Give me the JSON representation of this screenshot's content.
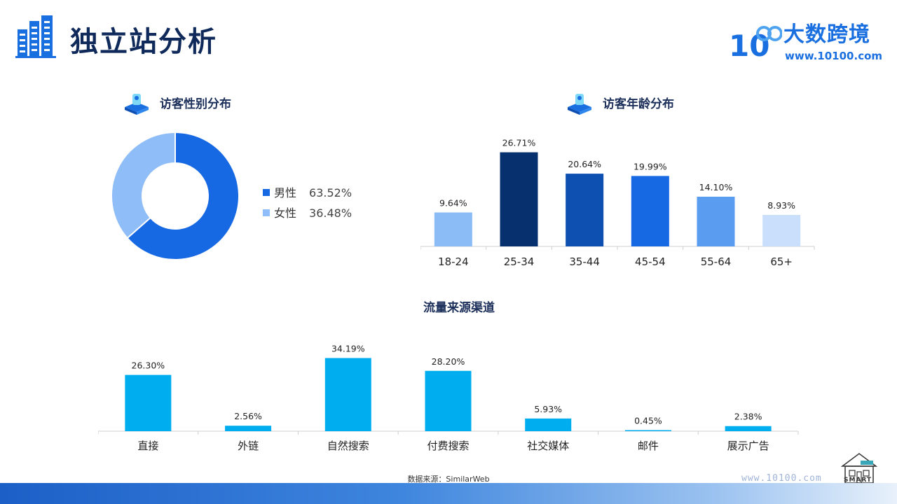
{
  "header": {
    "title": "独立站分析",
    "logo_name": "大数跨境",
    "logo_url": "www.10100.com",
    "logo_mark": "10",
    "brand_color": "#1a6fe0"
  },
  "gender_section": {
    "title": "访客性别分布",
    "icon": "server-cube-icon"
  },
  "age_section": {
    "title": "访客年龄分布",
    "icon": "server-cube-icon"
  },
  "traffic_section": {
    "title": "流量来源渠道"
  },
  "chart_data": [
    {
      "type": "pie",
      "variant": "donut",
      "categories": [
        "男性",
        "女性"
      ],
      "values": [
        63.52,
        36.48
      ],
      "labels": [
        "63.52%",
        "36.48%"
      ],
      "colors": [
        "#1668e3",
        "#8fbdf7"
      ],
      "legend": "right"
    },
    {
      "type": "bar",
      "categories": [
        "18-24",
        "25-34",
        "35-44",
        "45-54",
        "55-64",
        "65+"
      ],
      "values": [
        9.64,
        26.71,
        20.64,
        19.99,
        14.1,
        8.93
      ],
      "labels": [
        "9.64%",
        "26.71%",
        "20.64%",
        "19.99%",
        "14.10%",
        "8.93%"
      ],
      "colors": [
        "#8bbcf6",
        "#07306e",
        "#0e4fb2",
        "#1668e3",
        "#5a9cf0",
        "#c9dffb"
      ],
      "ylim": [
        0,
        30
      ],
      "grid": false
    },
    {
      "type": "bar",
      "categories": [
        "直接",
        "外链",
        "自然搜索",
        "付费搜索",
        "社交媒体",
        "邮件",
        "展示广告"
      ],
      "values": [
        26.3,
        2.56,
        34.19,
        28.2,
        5.93,
        0.45,
        2.38
      ],
      "labels": [
        "26.30%",
        "2.56%",
        "34.19%",
        "28.20%",
        "5.93%",
        "0.45%",
        "2.38%"
      ],
      "colors": [
        "#00aeef"
      ],
      "ylim": [
        0,
        35
      ],
      "grid": false
    }
  ],
  "footer": {
    "source": "数据来源：SimilarWeb",
    "url": "www.10100.com",
    "badge": "SMART"
  }
}
